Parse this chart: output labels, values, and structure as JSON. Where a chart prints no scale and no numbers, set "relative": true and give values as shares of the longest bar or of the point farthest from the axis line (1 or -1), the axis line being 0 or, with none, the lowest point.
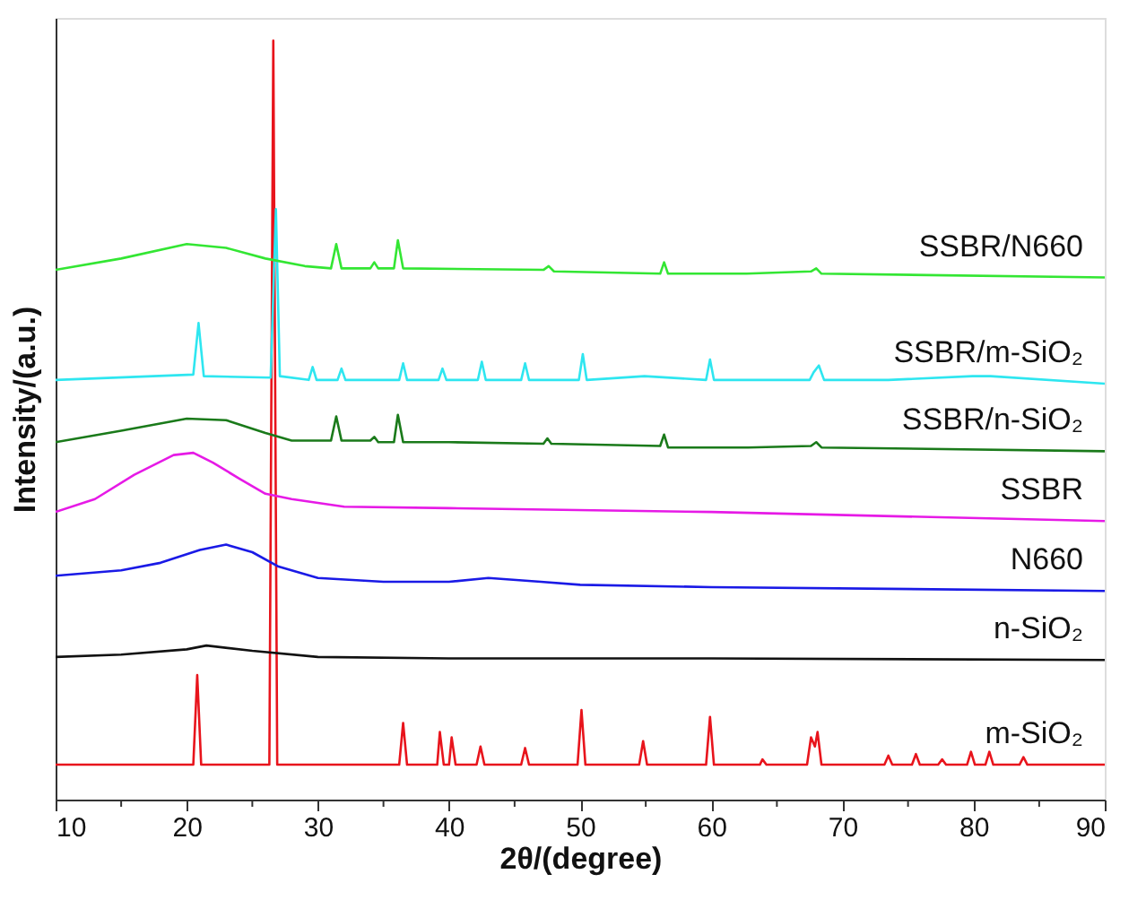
{
  "chart_data": {
    "type": "line",
    "relative": true,
    "xlabel": "2θ/(degree)",
    "ylabel": "Intensity/(a.u.)",
    "xlim": [
      10,
      90
    ],
    "xticks": [
      10,
      {
        "value": 15,
        "label": null
      },
      20,
      {
        "value": 25,
        "label": null
      },
      30,
      {
        "value": 35,
        "label": null
      },
      40,
      {
        "value": 45,
        "label": null
      },
      50,
      {
        "value": 55,
        "label": null
      },
      60,
      {
        "value": 65,
        "label": null
      },
      70,
      {
        "value": 75,
        "label": null
      },
      80,
      {
        "value": 85,
        "label": null
      },
      90
    ],
    "tick_labels": "x",
    "line_style": "solid",
    "series": [
      {
        "name": "m-SiO₂",
        "color": "#e8141c",
        "x": [
          10,
          20.5,
          20.8,
          21.1,
          26.3,
          26.6,
          26.9,
          36.2,
          36.5,
          36.8,
          39.1,
          39.3,
          39.6,
          40.0,
          40.2,
          40.5,
          42.1,
          42.4,
          42.7,
          45.5,
          45.8,
          46.1,
          49.8,
          50.1,
          50.4,
          54.5,
          54.8,
          55.1,
          59.6,
          59.9,
          60.2,
          63.7,
          63.9,
          64.2,
          67.3,
          67.6,
          67.9,
          68.1,
          68.4,
          73.2,
          73.5,
          73.8,
          75.3,
          75.6,
          75.9,
          77.3,
          77.6,
          77.9,
          79.5,
          79.8,
          80.1,
          80.9,
          81.2,
          81.5,
          83.5,
          83.8,
          84.1,
          90
        ],
        "values": [
          0.046,
          0.046,
          0.164,
          0.046,
          0.046,
          1.0,
          0.046,
          0.046,
          0.101,
          0.046,
          0.046,
          0.089,
          0.046,
          0.046,
          0.082,
          0.046,
          0.046,
          0.07,
          0.046,
          0.046,
          0.068,
          0.046,
          0.046,
          0.118,
          0.046,
          0.046,
          0.077,
          0.046,
          0.046,
          0.109,
          0.046,
          0.046,
          0.053,
          0.046,
          0.046,
          0.082,
          0.07,
          0.089,
          0.046,
          0.046,
          0.058,
          0.046,
          0.046,
          0.06,
          0.046,
          0.046,
          0.053,
          0.046,
          0.046,
          0.063,
          0.046,
          0.046,
          0.063,
          0.046,
          0.046,
          0.056,
          0.046,
          0.046
        ]
      },
      {
        "name": "n-SiO₂",
        "color": "#111111",
        "x": [
          10,
          15,
          20,
          21.5,
          25,
          30,
          40,
          60,
          90
        ],
        "values": [
          0.188,
          0.191,
          0.198,
          0.203,
          0.196,
          0.188,
          0.186,
          0.186,
          0.184
        ]
      },
      {
        "name": "N660",
        "color": "#1a1ae6",
        "x": [
          10,
          15,
          18,
          21,
          23,
          25,
          27,
          30,
          35,
          40,
          43,
          47,
          50,
          60,
          90
        ],
        "values": [
          0.295,
          0.302,
          0.312,
          0.329,
          0.336,
          0.326,
          0.307,
          0.292,
          0.287,
          0.287,
          0.292,
          0.287,
          0.283,
          0.28,
          0.275
        ]
      },
      {
        "name": "SSBR",
        "color": "#e61ae6",
        "x": [
          10,
          13,
          16,
          19,
          20.5,
          22,
          24,
          26,
          28,
          32,
          40,
          60,
          90
        ],
        "values": [
          0.379,
          0.396,
          0.428,
          0.454,
          0.457,
          0.444,
          0.423,
          0.403,
          0.396,
          0.386,
          0.384,
          0.379,
          0.367
        ]
      },
      {
        "name": "SSBR/n-SiO₂",
        "color": "#1a7a1a",
        "x": [
          10,
          15,
          20,
          23,
          26,
          28,
          31.0,
          31.4,
          31.8,
          34.0,
          34.3,
          34.6,
          35.8,
          36.1,
          36.5,
          40,
          47.2,
          47.5,
          47.8,
          56.1,
          56.4,
          56.7,
          62.8,
          67.6,
          68.0,
          68.4,
          90
        ],
        "values": [
          0.471,
          0.486,
          0.502,
          0.5,
          0.483,
          0.473,
          0.473,
          0.505,
          0.473,
          0.473,
          0.478,
          0.471,
          0.471,
          0.507,
          0.471,
          0.471,
          0.469,
          0.476,
          0.469,
          0.466,
          0.481,
          0.464,
          0.464,
          0.466,
          0.471,
          0.464,
          0.459
        ]
      },
      {
        "name": "SSBR/m-SiO₂",
        "color": "#2ee6f0",
        "x": [
          10,
          20.5,
          20.9,
          21.3,
          26.4,
          26.8,
          27.1,
          29.3,
          29.6,
          29.9,
          31.5,
          31.8,
          32.1,
          36.2,
          36.5,
          36.8,
          39.2,
          39.5,
          39.8,
          42.2,
          42.5,
          42.8,
          45.5,
          45.8,
          46.1,
          49.9,
          50.2,
          50.5,
          54.9,
          59.6,
          59.9,
          60.2,
          64,
          67.5,
          67.8,
          68.2,
          68.6,
          73.5,
          79.9,
          81.3,
          90
        ],
        "values": [
          0.553,
          0.56,
          0.628,
          0.558,
          0.556,
          0.778,
          0.558,
          0.553,
          0.57,
          0.553,
          0.553,
          0.568,
          0.553,
          0.553,
          0.575,
          0.553,
          0.553,
          0.568,
          0.553,
          0.553,
          0.577,
          0.553,
          0.553,
          0.575,
          0.553,
          0.553,
          0.587,
          0.553,
          0.558,
          0.553,
          0.58,
          0.553,
          0.553,
          0.553,
          0.563,
          0.572,
          0.553,
          0.553,
          0.558,
          0.558,
          0.548
        ]
      },
      {
        "name": "SSBR/N660",
        "color": "#33e633",
        "x": [
          10,
          15,
          20,
          23,
          26,
          29,
          31.0,
          31.4,
          31.8,
          34.0,
          34.3,
          34.6,
          35.8,
          36.1,
          36.5,
          47.2,
          47.6,
          48,
          56.1,
          56.4,
          56.7,
          62.7,
          67.6,
          68.0,
          68.4,
          90
        ],
        "values": [
          0.698,
          0.713,
          0.732,
          0.727,
          0.713,
          0.703,
          0.7,
          0.732,
          0.7,
          0.7,
          0.708,
          0.7,
          0.7,
          0.737,
          0.7,
          0.698,
          0.703,
          0.696,
          0.693,
          0.708,
          0.693,
          0.693,
          0.696,
          0.7,
          0.693,
          0.688
        ]
      }
    ]
  }
}
